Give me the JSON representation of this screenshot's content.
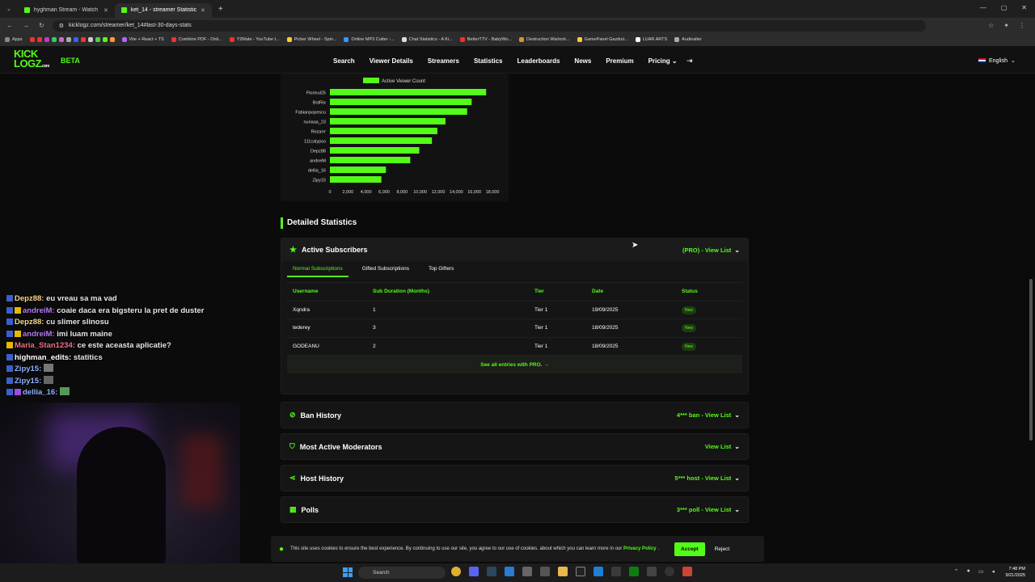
{
  "browser": {
    "tabs": [
      {
        "title": "hyghman Stream - Watch Live",
        "active": false
      },
      {
        "title": "ket_14 - streamer Statistics",
        "active": true
      }
    ],
    "url": "kicklogz.com/streamer/ket_14#last-30-days-stats",
    "bookmarks": [
      "Apps",
      "Vite + React + TS",
      "Combine PDF - Onli...",
      "Y2Mate - YouTube t...",
      "Picker Wheel - Spin...",
      "Online MP3 Cutter -...",
      "Chat Statistics - A Ki...",
      "BetterTTV - BabyWo...",
      "Destruction Warlock...",
      "GamePanel Gazduir...",
      "LUAR ARTS",
      "Audioalter"
    ]
  },
  "site": {
    "logo_top": "KICK",
    "logo_bottom": "LOGZ",
    "logo_suffix": ".com",
    "beta": "BETA",
    "nav": [
      "Search",
      "Viewer Details",
      "Streamers",
      "Statistics",
      "Leaderboards",
      "News",
      "Premium",
      "Pricing"
    ],
    "language": "English"
  },
  "chart_data": {
    "type": "bar",
    "orientation": "horizontal",
    "legend": "Active Viewer Count",
    "categories": [
      "Florinul25",
      "BotRix",
      "Fabianpopescu",
      "nuriaaa_23",
      "Rezarrr",
      "111calypso",
      "Depz88",
      "andreiM",
      "dellia_16",
      "Zipy15"
    ],
    "values": [
      17300,
      15700,
      15200,
      12800,
      11900,
      11300,
      9900,
      8900,
      6200,
      5700
    ],
    "xticks": [
      "0",
      "2,000",
      "4,000",
      "6,000",
      "8,000",
      "10,000",
      "12,000",
      "14,000",
      "16,000",
      "18,000"
    ],
    "xlim": [
      0,
      18000
    ],
    "bar_color": "#53fc18"
  },
  "detailed": {
    "title": "Detailed Statistics",
    "subs": {
      "title": "Active Subscribers",
      "right": "(PRO) - View List",
      "tabs": [
        "Normal Subscriptions",
        "Gifted Subscriptions",
        "Top Gifters"
      ],
      "headers": [
        "Username",
        "Sub Duration (Months)",
        "Tier",
        "Date",
        "Status"
      ],
      "rows": [
        {
          "user": "Xqndra",
          "months": "1",
          "tier": "Tier 1",
          "date": "19/09/2025",
          "status": "New"
        },
        {
          "user": "tederey",
          "months": "3",
          "tier": "Tier 1",
          "date": "18/09/2025",
          "status": "New"
        },
        {
          "user": "GODEANU",
          "months": "2",
          "tier": "Tier 1",
          "date": "18/09/2025",
          "status": "New"
        }
      ],
      "see_all": "See all entries with PRO. →"
    },
    "sections": [
      {
        "title": "Ban History",
        "right": "4*** ban - View List"
      },
      {
        "title": "Most Active Moderators",
        "right": "View List"
      },
      {
        "title": "Host History",
        "right": "5*** host - View List"
      },
      {
        "title": "Polls",
        "right": "3*** poll - View List"
      }
    ]
  },
  "cookie": {
    "text": "This site uses cookies to ensure the best experience. By continuing to use our site, you agree to our use of cookies. about which you can learn more in our",
    "link": "Privacy Policy",
    "accept": "Accept",
    "reject": "Reject"
  },
  "chat": [
    {
      "user": "Depz88:",
      "msg": "eu vreau sa ma vad",
      "color": "#f5d78a"
    },
    {
      "user": "andreiM:",
      "msg": "coaie daca era bigsteru la pret de duster",
      "color": "#b57cf2"
    },
    {
      "user": "Depz88:",
      "msg": "cu slimer slinosu",
      "color": "#f5d78a"
    },
    {
      "user": "andreiM:",
      "msg": "imi luam maine",
      "color": "#b57cf2"
    },
    {
      "user": "Maria_Stan1234:",
      "msg": "ce este aceasta aplicatie?",
      "color": "#f56b8a"
    },
    {
      "user": "highman_edits:",
      "msg": "statitics",
      "color": "#ffffff"
    },
    {
      "user": "Zipy15:",
      "msg": "",
      "color": "#8fb0ff"
    },
    {
      "user": "Zipy15:",
      "msg": "",
      "color": "#8fb0ff"
    },
    {
      "user": "dellia_16:",
      "msg": "",
      "color": "#8fb0ff"
    }
  ],
  "taskbar": {
    "search": "Search",
    "time": "7:48 PM",
    "date": "9/21/2025"
  }
}
